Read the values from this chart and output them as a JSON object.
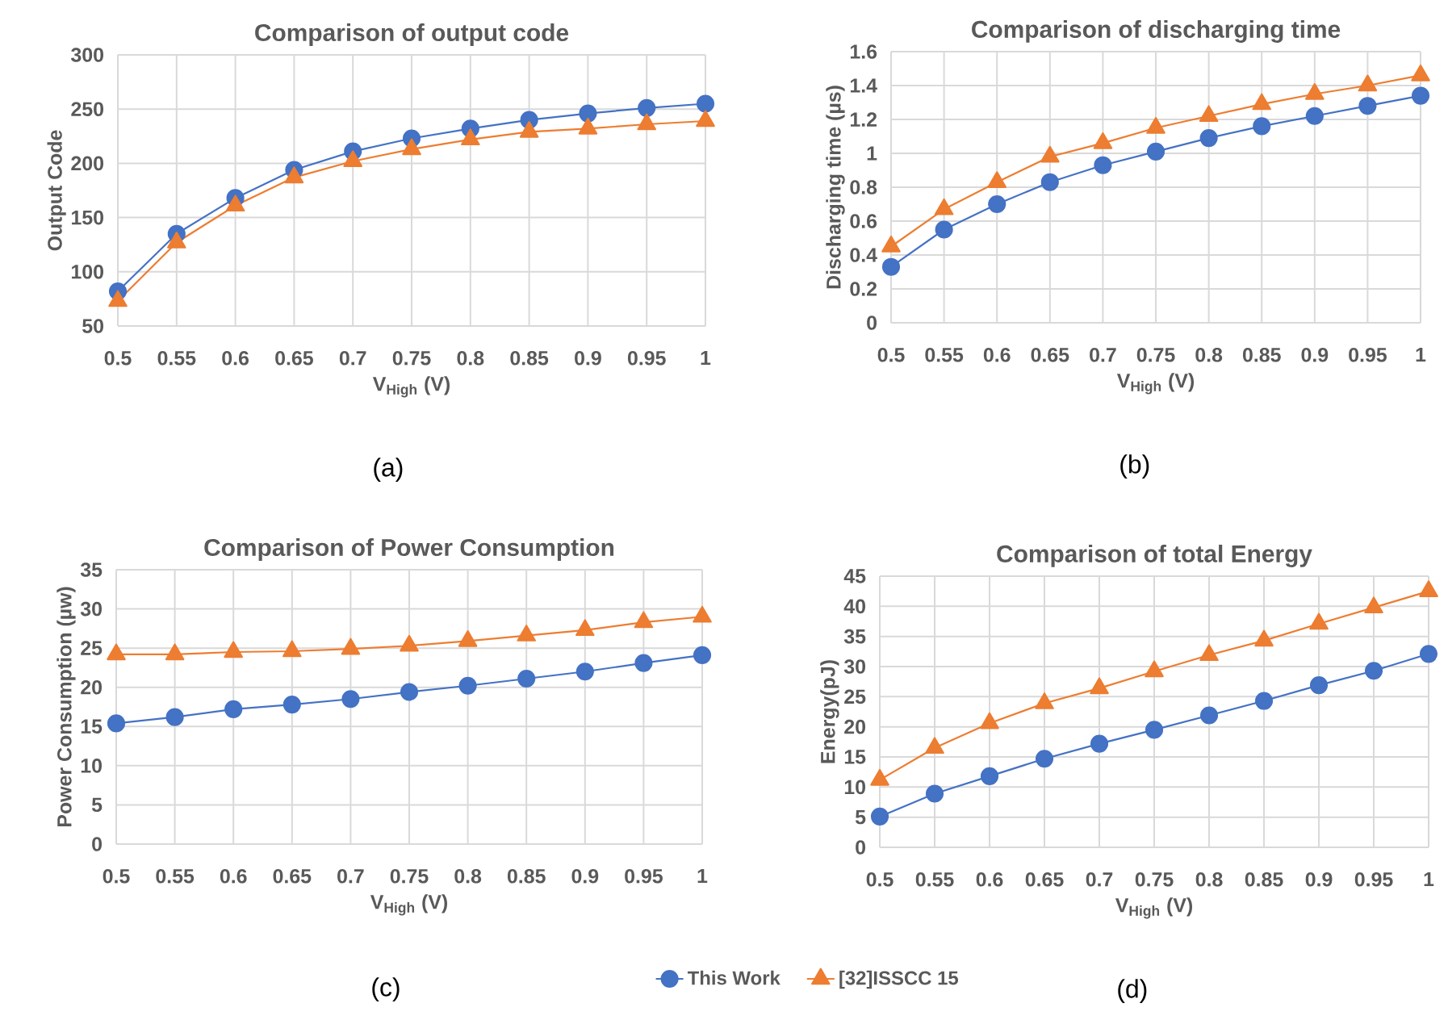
{
  "chart_data": [
    {
      "type": "line",
      "title": "Comparison of output code",
      "xlabel": "V$_{High}$ (V)",
      "ylabel": "Output Code",
      "categories": [
        "0.5",
        "0.55",
        "0.6",
        "0.65",
        "0.7",
        "0.75",
        "0.8",
        "0.85",
        "0.9",
        "0.95",
        "1"
      ],
      "series": [
        {
          "color": "#4472c4",
          "marker": "circle",
          "values": [
            82,
            135,
            168,
            194,
            211,
            223,
            232,
            240,
            246,
            251,
            255
          ]
        },
        {
          "color": "#ed7d31",
          "marker": "triangle",
          "values": [
            73,
            127,
            161,
            187,
            202,
            213,
            222,
            229,
            232,
            236,
            239
          ]
        }
      ],
      "ylim": [
        50,
        300
      ],
      "yticks": [
        50,
        100,
        150,
        200,
        250,
        300
      ],
      "grid": true,
      "annotations": [
        "(a)"
      ]
    },
    {
      "type": "line",
      "title": "Comparison of discharging time",
      "xlabel": "V$_{High}$ (V)",
      "ylabel": "Discharging time (µs)",
      "categories": [
        "0.5",
        "0.55",
        "0.6",
        "0.65",
        "0.7",
        "0.75",
        "0.8",
        "0.85",
        "0.9",
        "0.95",
        "1"
      ],
      "series": [
        {
          "color": "#4472c4",
          "marker": "circle",
          "values": [
            0.33,
            0.55,
            0.7,
            0.83,
            0.93,
            1.01,
            1.09,
            1.16,
            1.22,
            1.28,
            1.34
          ]
        },
        {
          "color": "#ed7d31",
          "marker": "triangle",
          "values": [
            0.45,
            0.67,
            0.83,
            0.98,
            1.06,
            1.15,
            1.22,
            1.29,
            1.35,
            1.4,
            1.46
          ]
        }
      ],
      "ylim": [
        0,
        1.6
      ],
      "yticks": [
        0,
        0.2,
        0.4,
        0.6,
        0.8,
        1,
        1.2,
        1.4,
        1.6
      ],
      "grid": true,
      "annotations": [
        "(b)"
      ]
    },
    {
      "type": "line",
      "title": "Comparison of Power Consumption",
      "xlabel": "V$_{High}$ (V)",
      "ylabel": "Power Consumption (µw)",
      "categories": [
        "0.5",
        "0.55",
        "0.6",
        "0.65",
        "0.7",
        "0.75",
        "0.8",
        "0.85",
        "0.9",
        "0.95",
        "1"
      ],
      "series": [
        {
          "color": "#4472c4",
          "marker": "circle",
          "values": [
            15.4,
            16.2,
            17.2,
            17.8,
            18.5,
            19.4,
            20.2,
            21.1,
            22.0,
            23.1,
            24.1
          ]
        },
        {
          "color": "#ed7d31",
          "marker": "triangle",
          "values": [
            24.2,
            24.2,
            24.5,
            24.6,
            24.9,
            25.3,
            25.9,
            26.6,
            27.3,
            28.3,
            29.0
          ]
        }
      ],
      "ylim": [
        0,
        35
      ],
      "yticks": [
        0,
        5,
        10,
        15,
        20,
        25,
        30,
        35
      ],
      "grid": true,
      "annotations": [
        "(c)"
      ]
    },
    {
      "type": "line",
      "title": "Comparison of total Energy",
      "xlabel": "V$_{High}$ (V)",
      "ylabel": "Energy(pJ)",
      "categories": [
        "0.5",
        "0.55",
        "0.6",
        "0.65",
        "0.7",
        "0.75",
        "0.8",
        "0.85",
        "0.9",
        "0.95",
        "1"
      ],
      "series": [
        {
          "name": "This Work",
          "color": "#4472c4",
          "marker": "circle",
          "values": [
            5.1,
            8.9,
            11.8,
            14.7,
            17.2,
            19.5,
            21.9,
            24.3,
            26.9,
            29.3,
            32.1
          ]
        },
        {
          "name": "[32]ISSCC 15",
          "color": "#ed7d31",
          "marker": "triangle",
          "values": [
            11.2,
            16.5,
            20.6,
            23.9,
            26.4,
            29.2,
            31.9,
            34.3,
            37.1,
            39.8,
            42.5
          ]
        }
      ],
      "ylim": [
        0,
        45
      ],
      "yticks": [
        0,
        5,
        10,
        15,
        20,
        25,
        30,
        35,
        40,
        45
      ],
      "grid": true,
      "legend": "bottom",
      "annotations": [
        "(d)"
      ]
    }
  ]
}
